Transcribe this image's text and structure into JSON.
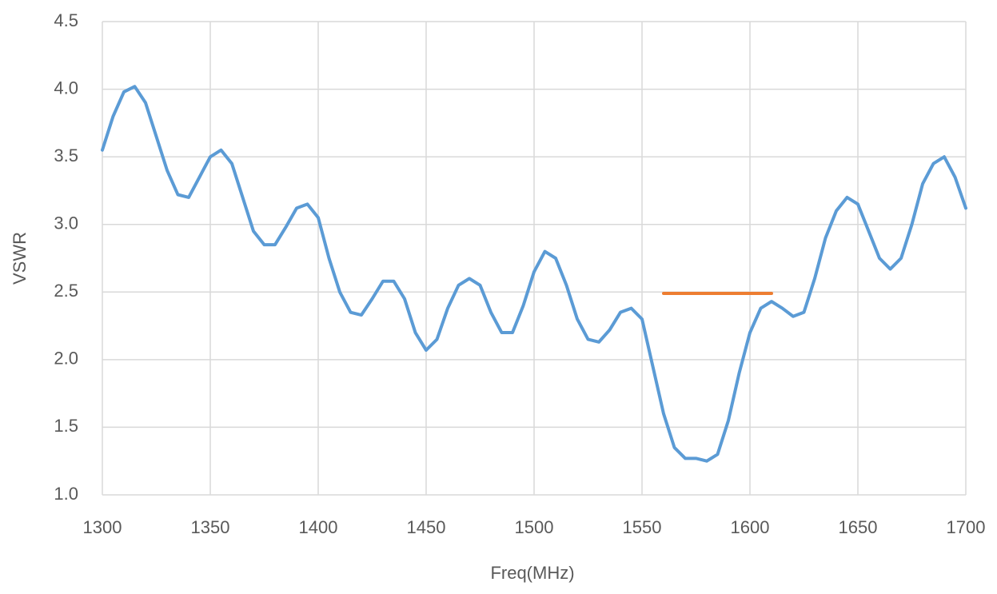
{
  "chart_data": {
    "type": "line",
    "x_label": "Freq(MHz)",
    "y_label": "VSWR",
    "xlim": [
      1300,
      1700
    ],
    "xticks": [
      1300,
      1350,
      1400,
      1450,
      1500,
      1550,
      1600,
      1650,
      1700
    ],
    "ylim": [
      1,
      4.5
    ],
    "yticks": [
      {
        "value": 1,
        "label": "1.0"
      },
      1.5,
      {
        "value": 2,
        "label": "2.0"
      },
      2.5,
      {
        "value": 3,
        "label": "3.0"
      },
      3.5,
      {
        "value": 4,
        "label": "4.0"
      },
      4.5
    ],
    "grid": true,
    "series": [
      {
        "color": "#5b9bd5",
        "x": [
          1300,
          1305,
          1310,
          1315,
          1320,
          1325,
          1330,
          1335,
          1340,
          1345,
          1350,
          1355,
          1360,
          1365,
          1370,
          1375,
          1380,
          1385,
          1390,
          1395,
          1400,
          1405,
          1410,
          1415,
          1420,
          1425,
          1430,
          1435,
          1440,
          1445,
          1450,
          1455,
          1460,
          1465,
          1470,
          1475,
          1480,
          1485,
          1490,
          1495,
          1500,
          1505,
          1510,
          1515,
          1520,
          1525,
          1530,
          1535,
          1540,
          1545,
          1550,
          1555,
          1560,
          1565,
          1570,
          1575,
          1580,
          1585,
          1590,
          1595,
          1600,
          1605,
          1610,
          1615,
          1620,
          1625,
          1630,
          1635,
          1640,
          1645,
          1650,
          1655,
          1660,
          1665,
          1670,
          1675,
          1680,
          1685,
          1690,
          1695,
          1700
        ],
        "values": [
          3.55,
          3.8,
          3.98,
          4.02,
          3.9,
          3.65,
          3.4,
          3.22,
          3.2,
          3.35,
          3.5,
          3.55,
          3.45,
          3.2,
          2.95,
          2.85,
          2.85,
          2.98,
          3.12,
          3.15,
          3.05,
          2.75,
          2.5,
          2.35,
          2.33,
          2.45,
          2.58,
          2.58,
          2.45,
          2.2,
          2.07,
          2.15,
          2.38,
          2.55,
          2.6,
          2.55,
          2.35,
          2.2,
          2.2,
          2.4,
          2.65,
          2.8,
          2.75,
          2.55,
          2.3,
          2.15,
          2.13,
          2.22,
          2.35,
          2.38,
          2.3,
          1.95,
          1.6,
          1.35,
          1.27,
          1.27,
          1.25,
          1.3,
          1.55,
          1.9,
          2.2,
          2.38,
          2.43,
          2.38,
          2.32,
          2.35,
          2.6,
          2.9,
          3.1,
          3.2,
          3.15,
          2.95,
          2.75,
          2.67,
          2.75,
          3.0,
          3.3,
          3.45,
          3.5,
          3.35,
          3.12
        ]
      },
      {
        "color": "#ed7d31",
        "x": [
          1560,
          1610
        ],
        "values": [
          2.49,
          2.49
        ]
      }
    ]
  }
}
